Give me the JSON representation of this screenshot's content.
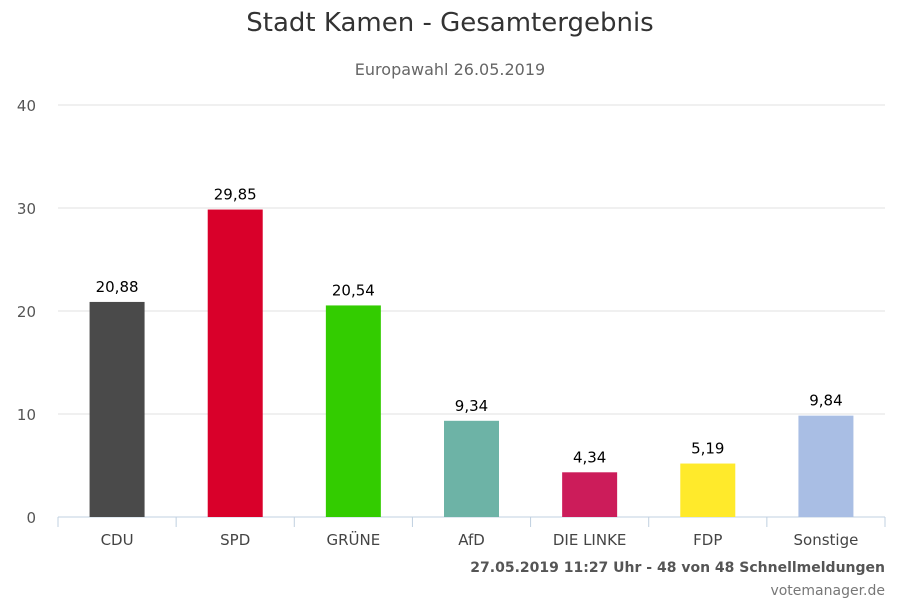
{
  "title": "Stadt Kamen - Gesamtergebnis",
  "subtitle": "Europawahl 26.05.2019",
  "footer": {
    "status": "27.05.2019 11:27 Uhr - 48 von 48 Schnellmeldungen",
    "credit": "votemanager.de"
  },
  "chart_data": {
    "type": "bar",
    "categories": [
      "CDU",
      "SPD",
      "GRÜNE",
      "AfD",
      "DIE LINKE",
      "FDP",
      "Sonstige"
    ],
    "values": [
      20.88,
      29.85,
      20.54,
      9.34,
      4.34,
      5.19,
      9.84
    ],
    "value_labels": [
      "20,88",
      "29,85",
      "20,54",
      "9,34",
      "4,34",
      "5,19",
      "9,84"
    ],
    "colors": [
      "#4a4a4a",
      "#d9002a",
      "#33cc00",
      "#6db3a6",
      "#cc1c5a",
      "#ffea2b",
      "#a9bee4"
    ],
    "ylim": [
      0,
      40
    ],
    "yticks": [
      0,
      10,
      20,
      30,
      40
    ],
    "grid": true
  }
}
